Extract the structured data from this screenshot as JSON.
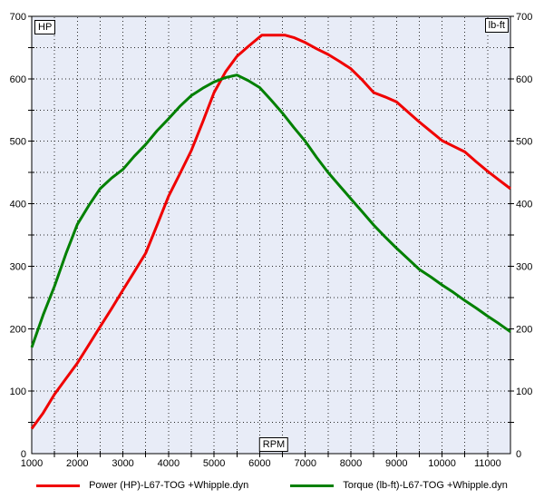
{
  "chart_data": {
    "type": "line",
    "title": "",
    "plot_background": "#e8ecf7",
    "grid": {
      "color": "#2a2a2a",
      "style": "dotted"
    },
    "frame_color": "#000000",
    "legend_position": "bottom",
    "x_axis": {
      "label": "RPM",
      "min": 1000,
      "max": 11500,
      "label_step": 1000,
      "grid_step": 500,
      "tick_labels": [
        "1000",
        "2000",
        "3000",
        "4000",
        "5000",
        "6000",
        "7000",
        "8000",
        "9000",
        "10000",
        "11000"
      ]
    },
    "y_axis_left": {
      "label": "HP",
      "min": 0,
      "max": 700,
      "label_step": 100,
      "grid_step": 50,
      "tick_labels": [
        "0",
        "100",
        "200",
        "300",
        "400",
        "500",
        "600",
        "700"
      ]
    },
    "y_axis_right": {
      "label": "lb-ft",
      "min": 0,
      "max": 700,
      "label_step": 100,
      "grid_step": 50,
      "tick_labels": [
        "0",
        "100",
        "200",
        "300",
        "400",
        "500",
        "600",
        "700"
      ]
    },
    "series": [
      {
        "name": "Power (HP)-L67-TOG +Whipple.dyn",
        "units": "HP",
        "color": "#f00000",
        "peak": {
          "value": 670,
          "rpm": 6300
        },
        "points": [
          [
            1000,
            40
          ],
          [
            1250,
            65
          ],
          [
            1500,
            95
          ],
          [
            1750,
            120
          ],
          [
            2000,
            145
          ],
          [
            2250,
            174
          ],
          [
            2500,
            203
          ],
          [
            2750,
            232
          ],
          [
            3000,
            262
          ],
          [
            3250,
            291
          ],
          [
            3500,
            321
          ],
          [
            3750,
            366
          ],
          [
            4000,
            412
          ],
          [
            4250,
            448
          ],
          [
            4500,
            485
          ],
          [
            4750,
            531
          ],
          [
            5000,
            578
          ],
          [
            5250,
            611
          ],
          [
            5500,
            636
          ],
          [
            5750,
            652
          ],
          [
            5900,
            661
          ],
          [
            6050,
            670
          ],
          [
            6550,
            670
          ],
          [
            6750,
            666
          ],
          [
            7000,
            658
          ],
          [
            7250,
            648
          ],
          [
            7500,
            639
          ],
          [
            7750,
            628
          ],
          [
            8000,
            616
          ],
          [
            8250,
            598
          ],
          [
            8500,
            578
          ],
          [
            8750,
            571
          ],
          [
            9000,
            563
          ],
          [
            9250,
            547
          ],
          [
            9500,
            531
          ],
          [
            9750,
            516
          ],
          [
            10000,
            501
          ],
          [
            10250,
            492
          ],
          [
            10500,
            483
          ],
          [
            10750,
            467
          ],
          [
            11000,
            452
          ],
          [
            11250,
            438
          ],
          [
            11500,
            424
          ]
        ]
      },
      {
        "name": "Torque (lb-ft)-L67-TOG +Whipple.dyn",
        "units": "lb-ft",
        "color": "#008000",
        "peak": {
          "value": 606,
          "rpm": 5500
        },
        "points": [
          [
            1000,
            170
          ],
          [
            1250,
            222
          ],
          [
            1500,
            268
          ],
          [
            1750,
            320
          ],
          [
            2000,
            367
          ],
          [
            2250,
            397
          ],
          [
            2500,
            424
          ],
          [
            2750,
            441
          ],
          [
            3000,
            455
          ],
          [
            3250,
            476
          ],
          [
            3500,
            495
          ],
          [
            3750,
            517
          ],
          [
            4000,
            536
          ],
          [
            4250,
            556
          ],
          [
            4500,
            573
          ],
          [
            4750,
            585
          ],
          [
            5000,
            595
          ],
          [
            5250,
            602
          ],
          [
            5500,
            606
          ],
          [
            5750,
            597
          ],
          [
            6000,
            586
          ],
          [
            6250,
            566
          ],
          [
            6500,
            545
          ],
          [
            6750,
            522
          ],
          [
            7000,
            500
          ],
          [
            7250,
            474
          ],
          [
            7500,
            450
          ],
          [
            7750,
            429
          ],
          [
            8000,
            408
          ],
          [
            8250,
            387
          ],
          [
            8500,
            366
          ],
          [
            8750,
            347
          ],
          [
            9000,
            329
          ],
          [
            9250,
            312
          ],
          [
            9500,
            295
          ],
          [
            9750,
            283
          ],
          [
            10000,
            270
          ],
          [
            10250,
            258
          ],
          [
            10500,
            245
          ],
          [
            10750,
            233
          ],
          [
            11000,
            220
          ],
          [
            11250,
            208
          ],
          [
            11500,
            195
          ]
        ]
      }
    ]
  },
  "legend": {
    "power_label": "Power (HP)-L67-TOG +Whipple.dyn",
    "torque_label": "Torque (lb-ft)-L67-TOG +Whipple.dyn"
  }
}
